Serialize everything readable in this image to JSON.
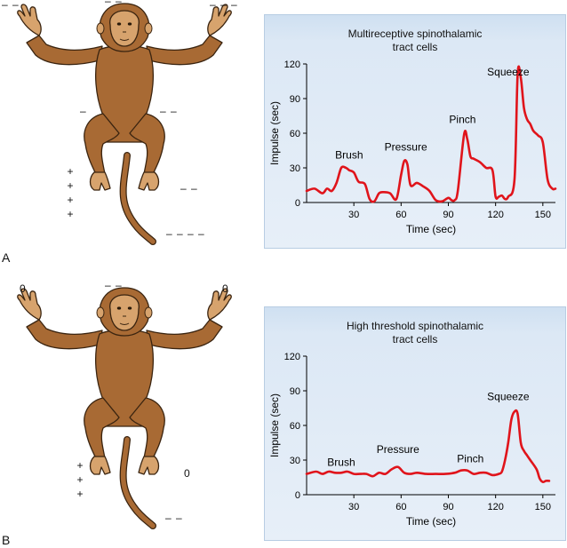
{
  "panels": [
    {
      "letter": "A",
      "marks": {
        "left_hand": "– –",
        "head": "– –",
        "right_hand": "– – –",
        "left_thigh": "–",
        "right_thigh": "– –",
        "left_foot": [
          "+",
          "+",
          "+",
          "+"
        ],
        "right_foot": "– –",
        "tail": "– – – –"
      },
      "chart_title_line1": "Multireceptive spinothalamic",
      "chart_title_line2": "tract cells"
    },
    {
      "letter": "B",
      "marks": {
        "left_hand": "0",
        "head": "– –",
        "right_hand": "0",
        "left_foot": [
          "+",
          "+",
          "+"
        ],
        "right_foot": "0",
        "tail": "– –"
      },
      "chart_title_line1": "High threshold spinothalamic",
      "chart_title_line2": "tract cells"
    }
  ],
  "colors": {
    "fur": "#a86a34",
    "fur_outline": "#3a2410",
    "skin": "#d7a36d",
    "curve": "#e0141b",
    "panel_top": "#cfe0f1",
    "panel_bottom": "#e7eff8"
  },
  "chart_data": [
    {
      "type": "line",
      "title": "Multireceptive spinothalamic tract cells",
      "xlabel": "Time (sec)",
      "ylabel": "Impulse (sec)",
      "xlim": [
        0,
        158
      ],
      "ylim": [
        0,
        120
      ],
      "xticks": [
        30,
        60,
        90,
        120,
        150
      ],
      "yticks": [
        0,
        30,
        60,
        90,
        120
      ],
      "series": [
        {
          "x": [
            0,
            5,
            10,
            13,
            16,
            19,
            22,
            25,
            27,
            30,
            33,
            37,
            40,
            43,
            46,
            49,
            53,
            57,
            60,
            62,
            64,
            66,
            70,
            74,
            78,
            82,
            86,
            90,
            92,
            94,
            96,
            100,
            102,
            104,
            106,
            110,
            114,
            118,
            120,
            122,
            124,
            126,
            128,
            132,
            134,
            136,
            138,
            140,
            142,
            144,
            147,
            150,
            153,
            156,
            158
          ],
          "values": [
            10,
            12,
            8,
            12,
            10,
            17,
            30,
            30,
            28,
            26,
            18,
            16,
            3,
            1,
            8,
            9,
            8,
            3,
            24,
            36,
            33,
            15,
            17,
            14,
            10,
            2,
            1,
            4,
            2,
            2,
            10,
            59,
            55,
            40,
            38,
            35,
            30,
            28,
            5,
            5,
            6,
            3,
            5,
            20,
            111,
            108,
            82,
            72,
            68,
            62,
            58,
            52,
            20,
            12,
            12
          ]
        }
      ],
      "annotations": [
        {
          "text": "Brush",
          "x": 27,
          "y": 38
        },
        {
          "text": "Pressure",
          "x": 63,
          "y": 45
        },
        {
          "text": "Pinch",
          "x": 99,
          "y": 69
        },
        {
          "text": "Squeeze",
          "x": 128,
          "y": 110
        }
      ]
    },
    {
      "type": "line",
      "title": "High threshold spinothalamic tract cells",
      "xlabel": "Time (sec)",
      "ylabel": "Impulse (sec)",
      "xlim": [
        0,
        158
      ],
      "ylim": [
        0,
        120
      ],
      "xticks": [
        30,
        60,
        90,
        120,
        150
      ],
      "yticks": [
        0,
        30,
        60,
        90,
        120
      ],
      "series": [
        {
          "x": [
            0,
            6,
            10,
            14,
            18,
            22,
            26,
            30,
            34,
            38,
            42,
            46,
            50,
            54,
            58,
            62,
            66,
            70,
            76,
            82,
            88,
            94,
            98,
            102,
            106,
            110,
            114,
            118,
            122,
            124,
            126,
            128,
            130,
            132,
            134,
            136,
            138,
            140,
            142,
            146,
            148,
            150,
            152,
            154
          ],
          "values": [
            18,
            20,
            18,
            20,
            19,
            19,
            20,
            18,
            18,
            18,
            16,
            19,
            18,
            22,
            24,
            19,
            18,
            19,
            18,
            18,
            18,
            19,
            21,
            21,
            18,
            19,
            19,
            17,
            18,
            20,
            30,
            45,
            65,
            72,
            70,
            45,
            38,
            34,
            30,
            22,
            14,
            11,
            12,
            12
          ]
        }
      ],
      "annotations": [
        {
          "text": "Brush",
          "x": 22,
          "y": 25
        },
        {
          "text": "Pressure",
          "x": 58,
          "y": 36
        },
        {
          "text": "Pinch",
          "x": 104,
          "y": 28
        },
        {
          "text": "Squeeze",
          "x": 128,
          "y": 82
        }
      ]
    }
  ]
}
